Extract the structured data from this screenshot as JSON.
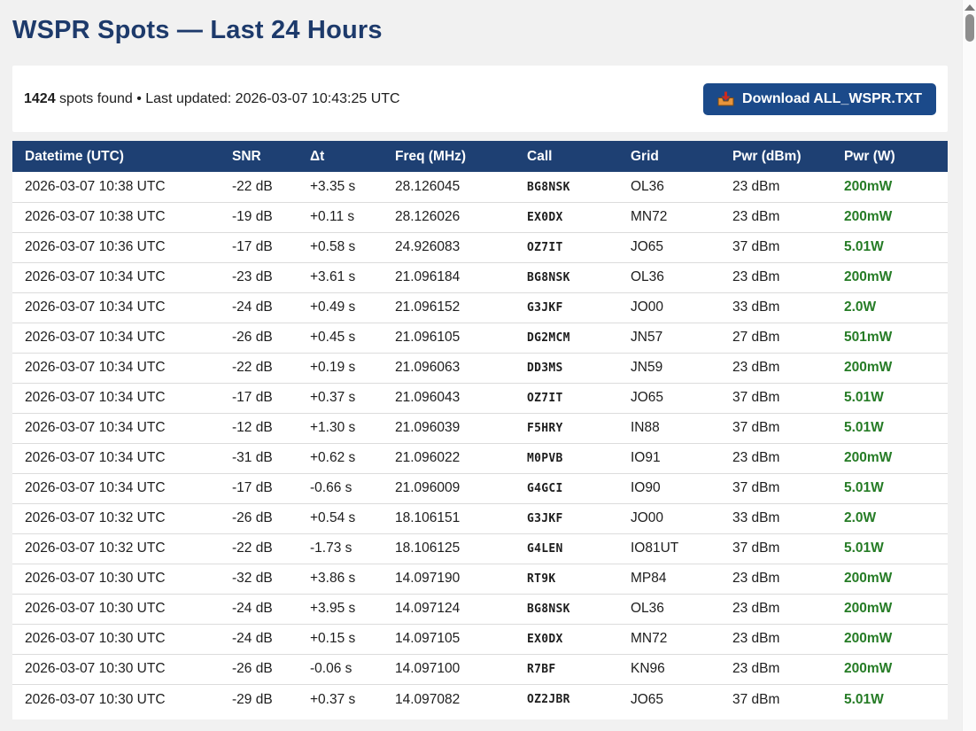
{
  "page": {
    "title": "WSPR Spots — Last 24 Hours",
    "status": {
      "count": "1424",
      "suffix": " spots found • Last updated: 2026-03-07 10:43:25 UTC"
    },
    "download": {
      "icon": "inbox-tray-download-icon",
      "label": "Download ALL_WSPR.TXT"
    }
  },
  "table": {
    "keys": [
      "datetime",
      "snr",
      "dt",
      "freq",
      "call",
      "grid",
      "pwr_dbm",
      "pwr_w"
    ],
    "columns": [
      "Datetime (UTC)",
      "SNR",
      "Δt",
      "Freq (MHz)",
      "Call",
      "Grid",
      "Pwr (dBm)",
      "Pwr (W)"
    ],
    "rows": [
      [
        "2026-03-07 10:38 UTC",
        "-22 dB",
        "+3.35 s",
        "28.126045",
        "BG8NSK",
        "OL36",
        "23 dBm",
        "200mW"
      ],
      [
        "2026-03-07 10:38 UTC",
        "-19 dB",
        "+0.11 s",
        "28.126026",
        "EX0DX",
        "MN72",
        "23 dBm",
        "200mW"
      ],
      [
        "2026-03-07 10:36 UTC",
        "-17 dB",
        "+0.58 s",
        "24.926083",
        "OZ7IT",
        "JO65",
        "37 dBm",
        "5.01W"
      ],
      [
        "2026-03-07 10:34 UTC",
        "-23 dB",
        "+3.61 s",
        "21.096184",
        "BG8NSK",
        "OL36",
        "23 dBm",
        "200mW"
      ],
      [
        "2026-03-07 10:34 UTC",
        "-24 dB",
        "+0.49 s",
        "21.096152",
        "G3JKF",
        "JO00",
        "33 dBm",
        "2.0W"
      ],
      [
        "2026-03-07 10:34 UTC",
        "-26 dB",
        "+0.45 s",
        "21.096105",
        "DG2MCM",
        "JN57",
        "27 dBm",
        "501mW"
      ],
      [
        "2026-03-07 10:34 UTC",
        "-22 dB",
        "+0.19 s",
        "21.096063",
        "DD3MS",
        "JN59",
        "23 dBm",
        "200mW"
      ],
      [
        "2026-03-07 10:34 UTC",
        "-17 dB",
        "+0.37 s",
        "21.096043",
        "OZ7IT",
        "JO65",
        "37 dBm",
        "5.01W"
      ],
      [
        "2026-03-07 10:34 UTC",
        "-12 dB",
        "+1.30 s",
        "21.096039",
        "F5HRY",
        "IN88",
        "37 dBm",
        "5.01W"
      ],
      [
        "2026-03-07 10:34 UTC",
        "-31 dB",
        "+0.62 s",
        "21.096022",
        "M0PVB",
        "IO91",
        "23 dBm",
        "200mW"
      ],
      [
        "2026-03-07 10:34 UTC",
        "-17 dB",
        "-0.66 s",
        "21.096009",
        "G4GCI",
        "IO90",
        "37 dBm",
        "5.01W"
      ],
      [
        "2026-03-07 10:32 UTC",
        "-26 dB",
        "+0.54 s",
        "18.106151",
        "G3JKF",
        "JO00",
        "33 dBm",
        "2.0W"
      ],
      [
        "2026-03-07 10:32 UTC",
        "-22 dB",
        "-1.73 s",
        "18.106125",
        "G4LEN",
        "IO81UT",
        "37 dBm",
        "5.01W"
      ],
      [
        "2026-03-07 10:30 UTC",
        "-32 dB",
        "+3.86 s",
        "14.097190",
        "RT9K",
        "MP84",
        "23 dBm",
        "200mW"
      ],
      [
        "2026-03-07 10:30 UTC",
        "-24 dB",
        "+3.95 s",
        "14.097124",
        "BG8NSK",
        "OL36",
        "23 dBm",
        "200mW"
      ],
      [
        "2026-03-07 10:30 UTC",
        "-24 dB",
        "+0.15 s",
        "14.097105",
        "EX0DX",
        "MN72",
        "23 dBm",
        "200mW"
      ],
      [
        "2026-03-07 10:30 UTC",
        "-26 dB",
        "-0.06 s",
        "14.097100",
        "R7BF",
        "KN96",
        "23 dBm",
        "200mW"
      ],
      [
        "2026-03-07 10:30 UTC",
        "-29 dB",
        "+0.37 s",
        "14.097082",
        "OZ2JBR",
        "JO65",
        "37 dBm",
        "5.01W"
      ]
    ]
  },
  "colors": {
    "title_navy": "#1d3a6b",
    "header_navy": "#1e4073",
    "button_blue": "#1b4a8a",
    "power_green": "#267c26"
  }
}
